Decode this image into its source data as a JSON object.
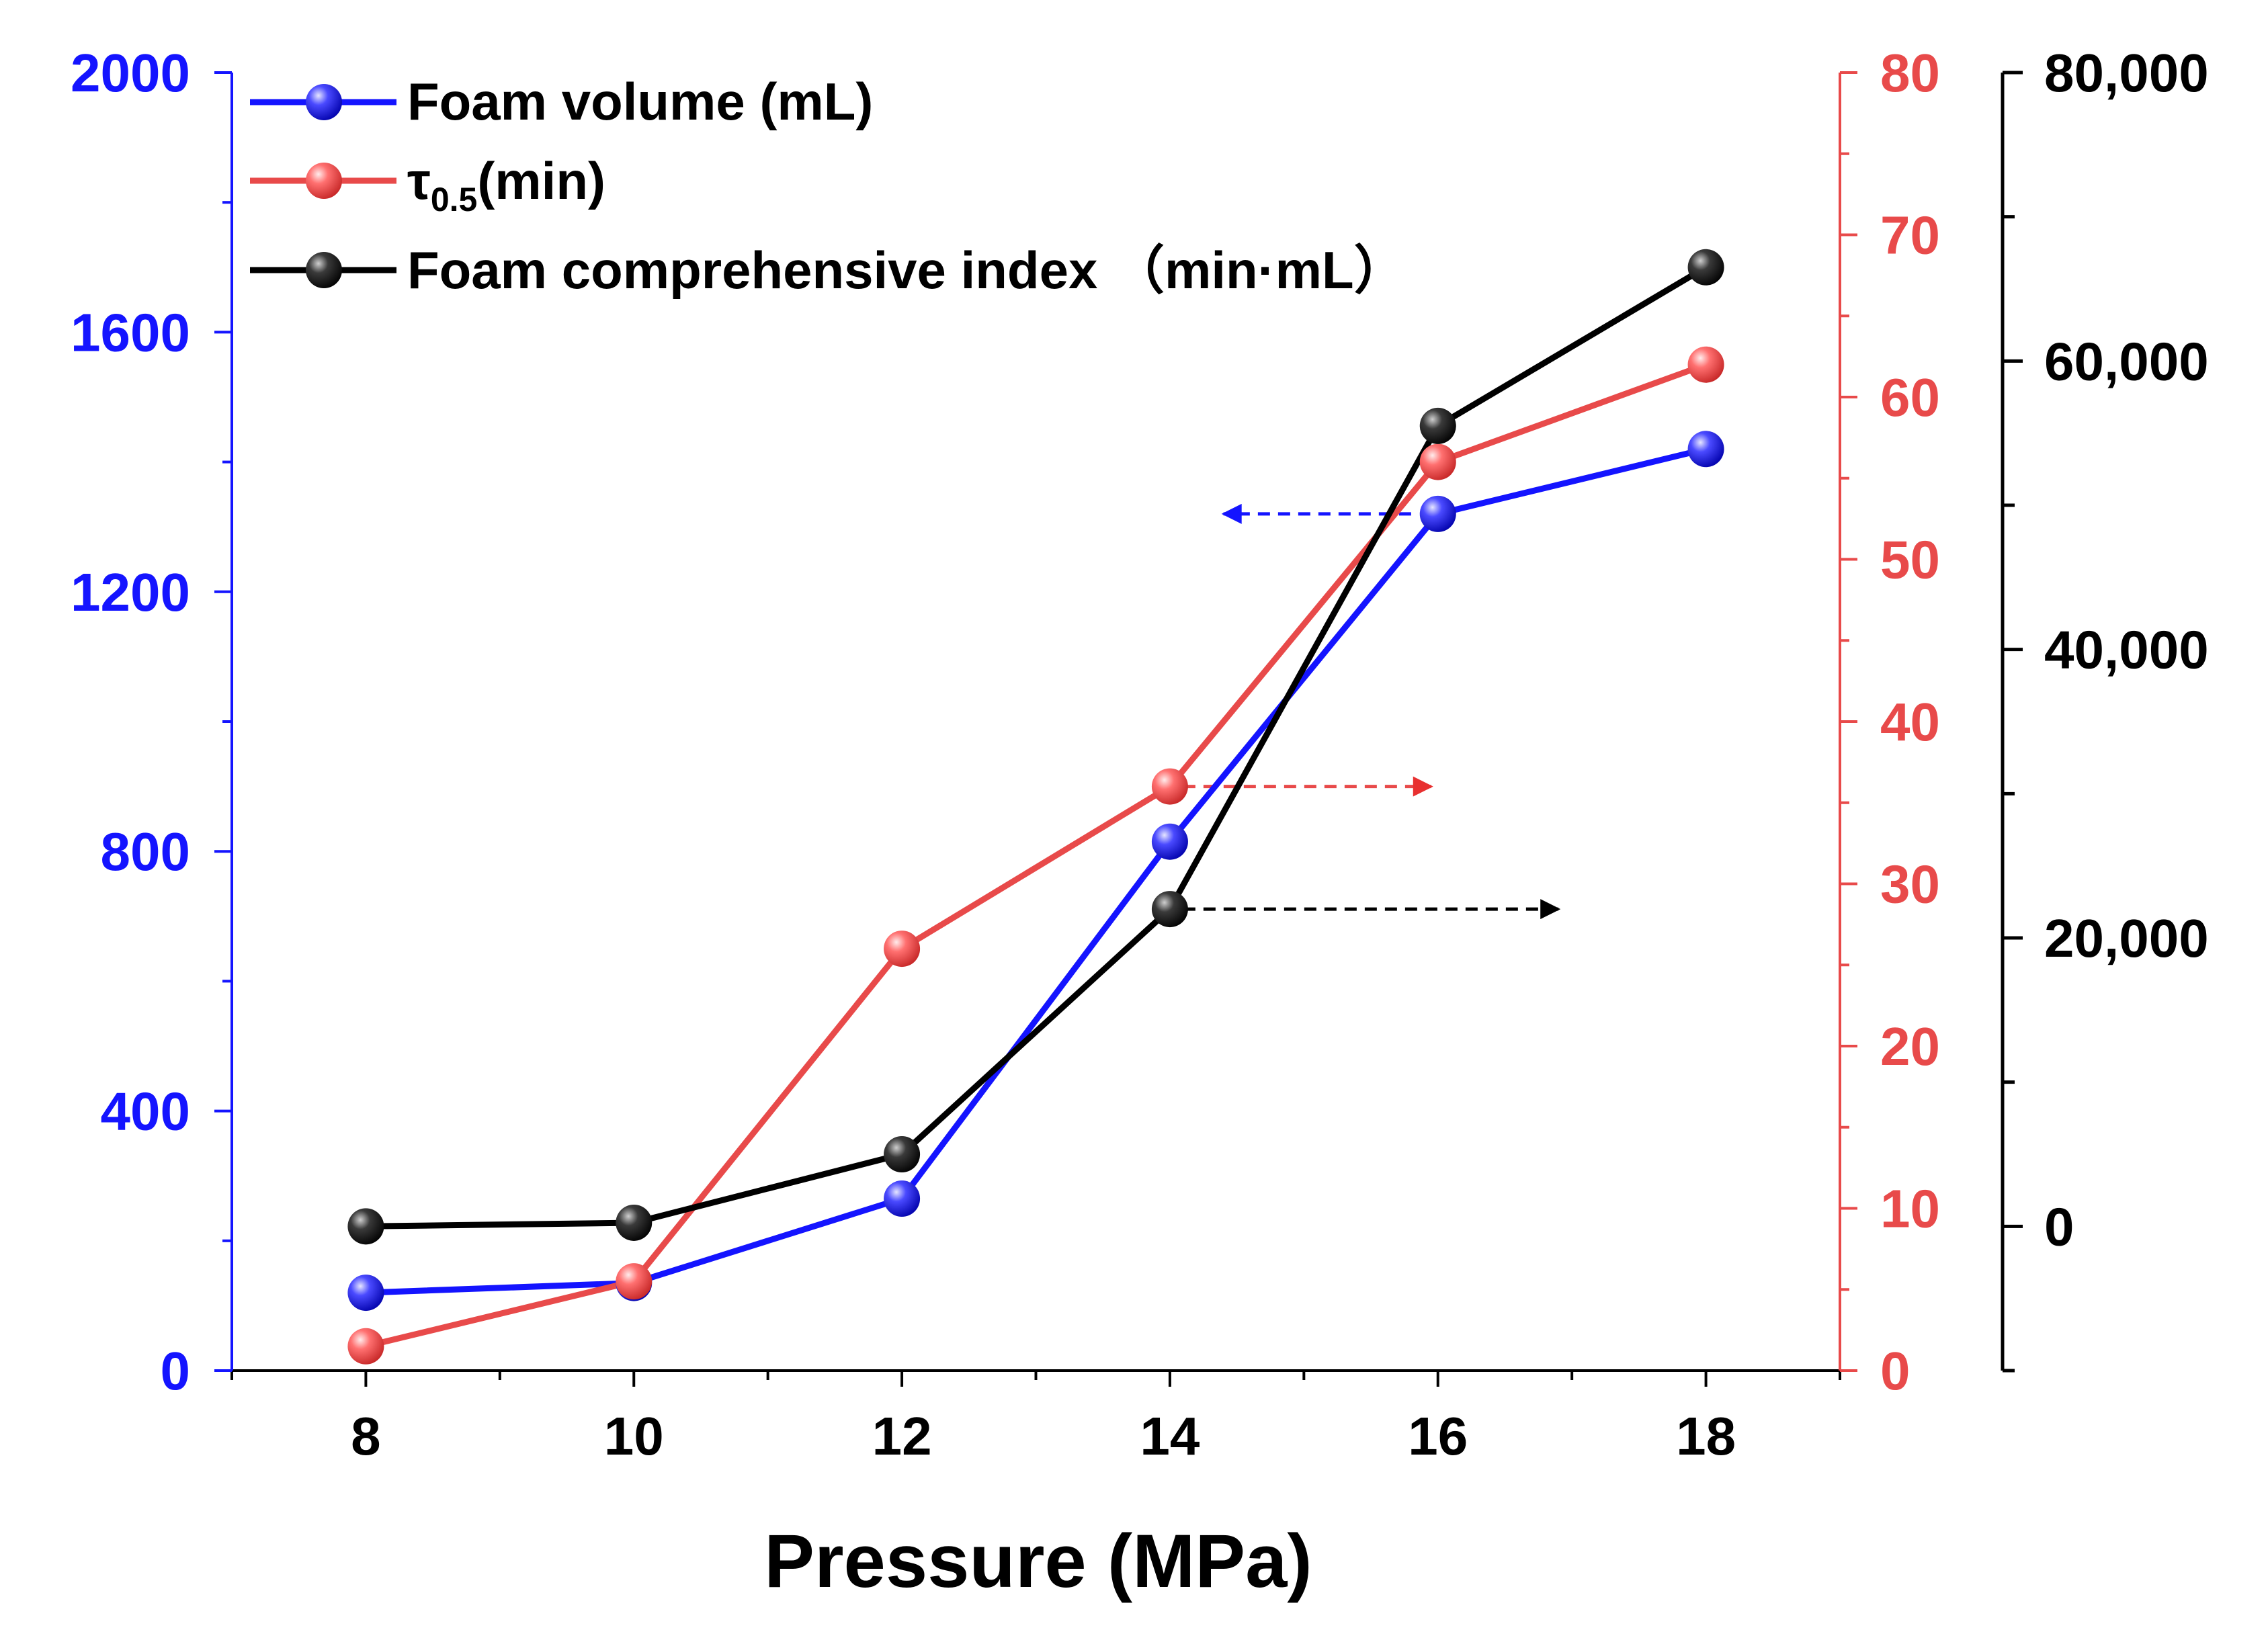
{
  "chart_data": {
    "type": "line",
    "xlabel": "Pressure (MPa)",
    "x": [
      8,
      10,
      12,
      14,
      16,
      18
    ],
    "xlim": [
      7,
      19
    ],
    "x_ticks": [
      "8",
      "10",
      "12",
      "14",
      "16",
      "18"
    ],
    "grid": false,
    "legend_position": "top-left",
    "axes": {
      "left": {
        "color": "#1414ff",
        "ylim": [
          0,
          2000
        ],
        "ticks": [
          "0",
          "400",
          "800",
          "1200",
          "1600",
          "2000"
        ]
      },
      "right": {
        "color": "#e84a4a",
        "ylim": [
          0,
          80
        ],
        "ticks": [
          "0",
          "10",
          "20",
          "30",
          "40",
          "50",
          "60",
          "70",
          "80"
        ]
      },
      "outer": {
        "color": "#000000",
        "ylim": [
          -10000,
          80000
        ],
        "ticks": [
          "0",
          "20,000",
          "40,000",
          "60,000",
          "80,000"
        ]
      }
    },
    "series": [
      {
        "name": "Foam volume (mL)",
        "axis": "left",
        "color": "#1414ff",
        "values": [
          120,
          135,
          265,
          815,
          1320,
          1420
        ]
      },
      {
        "name_main": "τ",
        "name_sub": "0.5",
        "name_tail": "(min)",
        "axis": "right",
        "color": "#e84a4a",
        "values": [
          1.5,
          5.5,
          26,
          36,
          56,
          62
        ]
      },
      {
        "name": "Foam comprehensive index （min·mL）",
        "axis": "outer",
        "color": "#000000",
        "values": [
          0,
          250,
          5000,
          22000,
          55500,
          66500
        ]
      }
    ],
    "annotations": [
      {
        "label": "left-axis-arrow",
        "direction": "left",
        "color": "#1414ff",
        "from_x": 15.8,
        "to_x": 14.4,
        "y_axis": "left",
        "y": 1320
      },
      {
        "label": "right-axis-arrow",
        "direction": "right",
        "color": "#e84a4a",
        "from_x": 14.1,
        "to_x": 15.95,
        "y_axis": "right",
        "y": 36
      },
      {
        "label": "outer-axis-arrow",
        "direction": "right",
        "color": "#000000",
        "from_x": 14.1,
        "to_x": 16.9,
        "y_axis": "outer",
        "y": 22000
      }
    ]
  }
}
